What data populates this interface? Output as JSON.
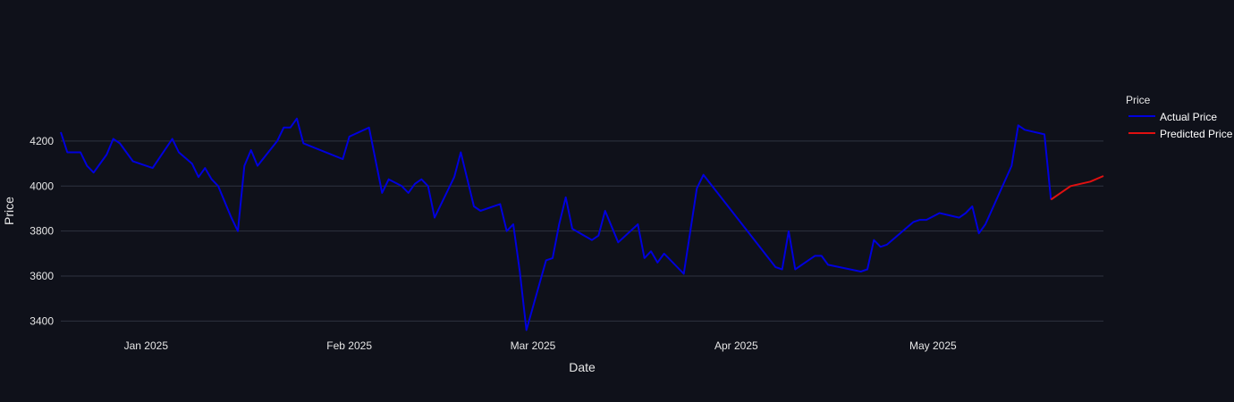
{
  "chart_data": {
    "type": "line",
    "xlabel": "Date",
    "ylabel": "Price",
    "x_ticks": [
      "Jan 2025",
      "Feb 2025",
      "Mar 2025",
      "Apr 2025",
      "May 2025"
    ],
    "x_tick_dates": [
      "2025-01-01",
      "2025-02-01",
      "2025-03-01",
      "2025-04-01",
      "2025-05-01"
    ],
    "y_ticks": [
      3400,
      3600,
      3800,
      4000,
      4200
    ],
    "xlim": [
      "2024-12-19",
      "2025-05-27"
    ],
    "ylim": [
      3350,
      4430
    ],
    "grid": true,
    "legend": {
      "title": "Price",
      "position": "right"
    },
    "series": [
      {
        "name": "Actual Price",
        "color": "#0000dd",
        "points": [
          [
            "2024-12-19",
            4240
          ],
          [
            "2024-12-20",
            4150
          ],
          [
            "2024-12-21",
            4150
          ],
          [
            "2024-12-22",
            4150
          ],
          [
            "2024-12-23",
            4090
          ],
          [
            "2024-12-24",
            4060
          ],
          [
            "2024-12-26",
            4140
          ],
          [
            "2024-12-27",
            4210
          ],
          [
            "2024-12-28",
            4190
          ],
          [
            "2024-12-30",
            4110
          ],
          [
            "2025-01-02",
            4080
          ],
          [
            "2025-01-05",
            4210
          ],
          [
            "2025-01-06",
            4150
          ],
          [
            "2025-01-08",
            4100
          ],
          [
            "2025-01-09",
            4040
          ],
          [
            "2025-01-10",
            4080
          ],
          [
            "2025-01-11",
            4030
          ],
          [
            "2025-01-12",
            4000
          ],
          [
            "2025-01-14",
            3860
          ],
          [
            "2025-01-15",
            3800
          ],
          [
            "2025-01-16",
            4090
          ],
          [
            "2025-01-17",
            4160
          ],
          [
            "2025-01-18",
            4090
          ],
          [
            "2025-01-21",
            4200
          ],
          [
            "2025-01-22",
            4260
          ],
          [
            "2025-01-23",
            4260
          ],
          [
            "2025-01-24",
            4300
          ],
          [
            "2025-01-25",
            4190
          ],
          [
            "2025-01-31",
            4120
          ],
          [
            "2025-02-01",
            4220
          ],
          [
            "2025-02-04",
            4260
          ],
          [
            "2025-02-06",
            3970
          ],
          [
            "2025-02-07",
            4030
          ],
          [
            "2025-02-09",
            4000
          ],
          [
            "2025-02-10",
            3970
          ],
          [
            "2025-02-11",
            4010
          ],
          [
            "2025-02-12",
            4030
          ],
          [
            "2025-02-13",
            4000
          ],
          [
            "2025-02-14",
            3860
          ],
          [
            "2025-02-17",
            4040
          ],
          [
            "2025-02-18",
            4150
          ],
          [
            "2025-02-20",
            3910
          ],
          [
            "2025-02-21",
            3890
          ],
          [
            "2025-02-24",
            3920
          ],
          [
            "2025-02-25",
            3800
          ],
          [
            "2025-02-26",
            3830
          ],
          [
            "2025-02-27",
            3620
          ],
          [
            "2025-02-28",
            3360
          ],
          [
            "2025-03-03",
            3670
          ],
          [
            "2025-03-04",
            3680
          ],
          [
            "2025-03-05",
            3830
          ],
          [
            "2025-03-06",
            3950
          ],
          [
            "2025-03-07",
            3810
          ],
          [
            "2025-03-10",
            3760
          ],
          [
            "2025-03-11",
            3780
          ],
          [
            "2025-03-12",
            3890
          ],
          [
            "2025-03-13",
            3820
          ],
          [
            "2025-03-14",
            3750
          ],
          [
            "2025-03-17",
            3830
          ],
          [
            "2025-03-18",
            3680
          ],
          [
            "2025-03-19",
            3710
          ],
          [
            "2025-03-20",
            3660
          ],
          [
            "2025-03-21",
            3700
          ],
          [
            "2025-03-24",
            3610
          ],
          [
            "2025-03-26",
            3990
          ],
          [
            "2025-03-27",
            4050
          ],
          [
            "2025-04-07",
            3640
          ],
          [
            "2025-04-08",
            3630
          ],
          [
            "2025-04-09",
            3800
          ],
          [
            "2025-04-10",
            3630
          ],
          [
            "2025-04-13",
            3690
          ],
          [
            "2025-04-14",
            3690
          ],
          [
            "2025-04-15",
            3650
          ],
          [
            "2025-04-20",
            3620
          ],
          [
            "2025-04-21",
            3630
          ],
          [
            "2025-04-22",
            3760
          ],
          [
            "2025-04-23",
            3730
          ],
          [
            "2025-04-24",
            3740
          ],
          [
            "2025-04-28",
            3840
          ],
          [
            "2025-04-29",
            3850
          ],
          [
            "2025-04-30",
            3850
          ],
          [
            "2025-05-02",
            3880
          ],
          [
            "2025-05-05",
            3860
          ],
          [
            "2025-05-06",
            3880
          ],
          [
            "2025-05-07",
            3910
          ],
          [
            "2025-05-08",
            3790
          ],
          [
            "2025-05-09",
            3830
          ],
          [
            "2025-05-13",
            4090
          ],
          [
            "2025-05-14",
            4270
          ],
          [
            "2025-05-15",
            4250
          ],
          [
            "2025-05-18",
            4230
          ],
          [
            "2025-05-19",
            3940
          ]
        ]
      },
      {
        "name": "Predicted Price",
        "color": "#e01010",
        "points": [
          [
            "2025-05-19",
            3940
          ],
          [
            "2025-05-22",
            4000
          ],
          [
            "2025-05-25",
            4020
          ],
          [
            "2025-05-27",
            4045
          ]
        ]
      }
    ]
  }
}
